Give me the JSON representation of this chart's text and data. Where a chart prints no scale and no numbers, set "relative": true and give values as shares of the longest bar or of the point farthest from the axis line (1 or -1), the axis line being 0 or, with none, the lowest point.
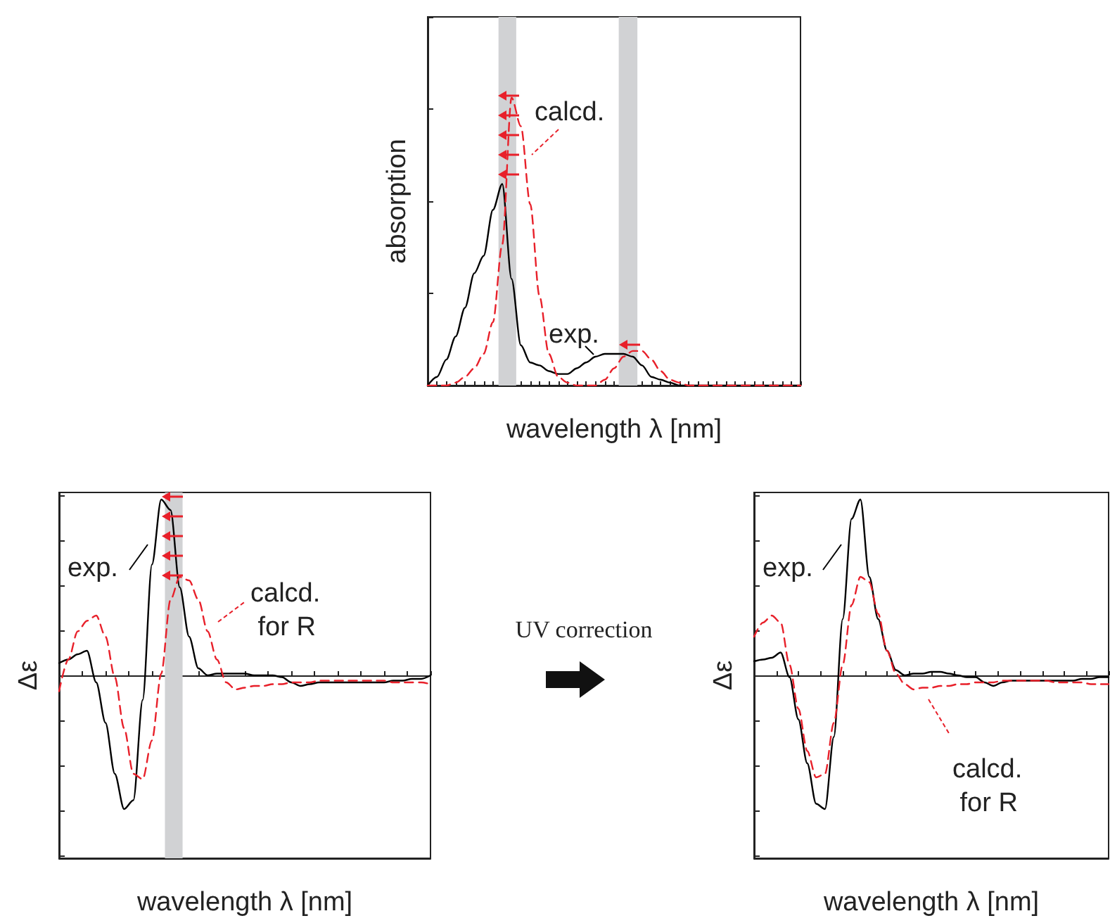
{
  "chart_data": [
    {
      "type": "line",
      "relative": true,
      "xlabel": "wavelength λ [nm]",
      "ylabel": "absorption",
      "legend": "top left",
      "grid": false,
      "categories": [
        null,
        null,
        null,
        null,
        null,
        null,
        null,
        null,
        null,
        null,
        null,
        null,
        null,
        null,
        null,
        null,
        null,
        null,
        null,
        null,
        null,
        null,
        null,
        null,
        null,
        null,
        null,
        null,
        null,
        null,
        null,
        null,
        null,
        null,
        null,
        null,
        null,
        null,
        null,
        null,
        null
      ],
      "series": [
        {
          "name": "exp.",
          "color": "#000000",
          "line_style": "solid",
          "values": [
            0,
            0.03,
            0.09,
            0.17,
            0.27,
            0.39,
            0.45,
            0.61,
            0.7,
            0.37,
            0.14,
            0.08,
            0.07,
            0.05,
            0.04,
            0.04,
            0.06,
            0.08,
            0.1,
            0.11,
            0.11,
            0.11,
            0.1,
            0.07,
            0.03,
            0.02,
            0.01,
            0,
            0,
            0,
            0,
            0,
            0,
            0,
            0,
            0,
            0,
            0,
            0,
            0,
            0
          ]
        },
        {
          "name": "calcd.",
          "color": "#e8202a",
          "line_style": "dashed",
          "values": [
            0,
            0,
            0,
            0.01,
            0.03,
            0.06,
            0.11,
            0.22,
            0.49,
            1.0,
            0.9,
            0.63,
            0.31,
            0.11,
            0.03,
            0.01,
            0,
            0,
            0,
            0.02,
            0.06,
            0.1,
            0.12,
            0.12,
            0.09,
            0.05,
            0.02,
            0.01,
            0,
            0,
            0,
            0,
            0,
            0,
            0,
            0,
            0,
            0,
            0,
            0,
            0
          ]
        }
      ]
    },
    {
      "type": "line",
      "relative": true,
      "xlabel": "wavelength λ [nm]",
      "ylabel": "Δε",
      "legend": "top right",
      "grid": false,
      "categories": [
        null,
        null,
        null,
        null,
        null,
        null,
        null,
        null,
        null,
        null,
        null,
        null,
        null,
        null,
        null,
        null,
        null,
        null,
        null,
        null,
        null,
        null,
        null,
        null,
        null,
        null,
        null,
        null,
        null,
        null,
        null,
        null,
        null,
        null,
        null,
        null,
        null,
        null,
        null,
        null,
        null
      ],
      "series": [
        {
          "name": "exp.",
          "color": "#000000",
          "line_style": "solid",
          "values": [
            0.07,
            0.09,
            0.12,
            0.14,
            -0.04,
            -0.27,
            -0.56,
            -0.76,
            -0.71,
            -0.14,
            0.63,
            1.0,
            0.94,
            0.5,
            0.22,
            0.04,
            0,
            0.01,
            0.01,
            0.01,
            0.01,
            0,
            0,
            0,
            -0.01,
            -0.04,
            -0.06,
            -0.05,
            -0.04,
            -0.04,
            -0.04,
            -0.04,
            -0.04,
            -0.04,
            -0.04,
            -0.04,
            -0.03,
            -0.03,
            -0.02,
            -0.02,
            0
          ]
        },
        {
          "name": "calcd. for R",
          "color": "#e8202a",
          "line_style": "dashed",
          "values": [
            -0.09,
            0.09,
            0.25,
            0.31,
            0.34,
            0.22,
            -0.01,
            -0.3,
            -0.56,
            -0.59,
            -0.37,
            0.01,
            0.43,
            0.56,
            0.54,
            0.43,
            0.25,
            0.09,
            -0.04,
            -0.08,
            -0.07,
            -0.06,
            -0.06,
            -0.05,
            -0.05,
            -0.04,
            -0.04,
            -0.04,
            -0.03,
            -0.03,
            -0.03,
            -0.03,
            -0.03,
            -0.03,
            -0.03,
            -0.03,
            -0.04,
            -0.04,
            -0.04,
            -0.04,
            -0.05
          ]
        }
      ]
    },
    {
      "type": "line",
      "relative": true,
      "xlabel": "wavelength λ [nm]",
      "ylabel": "Δε",
      "legend": "right",
      "grid": false,
      "annotations": [
        "UV correction"
      ],
      "categories": [
        null,
        null,
        null,
        null,
        null,
        null,
        null,
        null,
        null,
        null,
        null,
        null,
        null,
        null,
        null,
        null,
        null,
        null,
        null,
        null,
        null,
        null,
        null,
        null,
        null,
        null,
        null,
        null,
        null,
        null,
        null,
        null,
        null,
        null,
        null,
        null,
        null,
        null,
        null,
        null,
        null
      ],
      "series": [
        {
          "name": "exp.",
          "color": "#000000",
          "line_style": "solid",
          "values": [
            0.08,
            0.09,
            0.1,
            0.13,
            -0.01,
            -0.25,
            -0.5,
            -0.73,
            -0.76,
            -0.35,
            0.32,
            0.89,
            1.0,
            0.56,
            0.32,
            0.14,
            0.03,
            0,
            0.01,
            0.01,
            0.02,
            0.02,
            0.01,
            0,
            -0.01,
            -0.01,
            -0.04,
            -0.06,
            -0.04,
            -0.03,
            -0.03,
            -0.03,
            -0.03,
            -0.03,
            -0.03,
            -0.03,
            -0.03,
            -0.02,
            -0.02,
            -0.01,
            -0.01
          ]
        },
        {
          "name": "calcd. for R",
          "color": "#e8202a",
          "line_style": "dashed",
          "values": [
            0.22,
            0.3,
            0.34,
            0.3,
            0.06,
            -0.19,
            -0.43,
            -0.58,
            -0.56,
            -0.27,
            0.06,
            0.4,
            0.56,
            0.53,
            0.35,
            0.14,
            0.01,
            -0.05,
            -0.08,
            -0.07,
            -0.07,
            -0.06,
            -0.06,
            -0.05,
            -0.05,
            -0.04,
            -0.04,
            -0.04,
            -0.03,
            -0.03,
            -0.03,
            -0.03,
            -0.03,
            -0.03,
            -0.04,
            -0.04,
            -0.04,
            -0.04,
            -0.05,
            -0.05,
            -0.05
          ]
        }
      ]
    }
  ]
}
